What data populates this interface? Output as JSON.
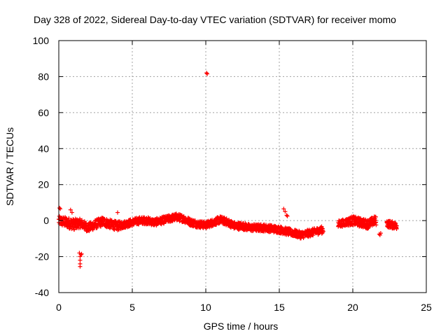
{
  "chart_data": {
    "type": "scatter",
    "title": "Day 328 of 2022, Sidereal Day-to-day VTEC variation (SDTVAR) for receiver momo",
    "xlabel": "GPS time / hours",
    "ylabel": "SDTVAR / TECUs",
    "xlim": [
      0,
      25
    ],
    "ylim": [
      -40,
      100
    ],
    "x_ticks": [
      0,
      5,
      10,
      15,
      20,
      25
    ],
    "x_tick_labels": [
      "0",
      "5",
      "10",
      "15",
      "20",
      "25"
    ],
    "y_ticks": [
      -40,
      -20,
      0,
      20,
      40,
      60,
      80,
      100
    ],
    "y_tick_labels": [
      "-40",
      "-20",
      "0",
      "20",
      "40",
      "60",
      "80",
      "100"
    ],
    "grid": true,
    "marker": "plus",
    "colors": {
      "points": "#ff0000",
      "grid": "#a0a0a0",
      "axes": "#000000"
    },
    "series": [
      {
        "name": "SDTVAR",
        "trend": {
          "x": [
            0.0,
            0.5,
            1.0,
            1.5,
            2.0,
            2.5,
            3.0,
            3.5,
            4.0,
            4.5,
            5.0,
            5.5,
            6.0,
            6.5,
            7.0,
            7.5,
            8.0,
            8.5,
            9.0,
            9.5,
            10.0,
            10.5,
            11.0,
            11.5,
            12.0,
            12.5,
            13.0,
            13.5,
            14.0,
            14.5,
            15.0,
            15.5,
            16.0,
            16.5,
            17.0,
            17.5,
            18.0,
            19.0,
            19.5,
            20.0,
            20.5,
            21.0,
            21.5,
            22.0,
            22.5,
            23.0
          ],
          "y": [
            0,
            -1,
            -2,
            -1.5,
            -4,
            -2,
            -0.5,
            -2,
            -3,
            -2,
            -1,
            0,
            0,
            -1,
            0,
            1,
            2,
            1,
            -1,
            -2,
            -2.5,
            -1,
            0.5,
            -1,
            -3,
            -3,
            -4,
            -4,
            -4,
            -4.5,
            -5,
            -6,
            -7,
            -8,
            -7,
            -6,
            -5,
            -2,
            -1,
            0,
            -1,
            -2,
            0,
            -1,
            -2,
            -3
          ],
          "spread": [
            2.5,
            3,
            3,
            2.5,
            2.5,
            2.5,
            2.5,
            2.5,
            2.5,
            2,
            2,
            2,
            2,
            2,
            2,
            2,
            2,
            2,
            2,
            2,
            2,
            2,
            2,
            2,
            2,
            2,
            2,
            2,
            2,
            2,
            2,
            2,
            2,
            2,
            2,
            2,
            2,
            2,
            2,
            2.5,
            2.5,
            2.5,
            2.5,
            2,
            2,
            2
          ],
          "gaps": [
            [
              18.0,
              19.0
            ],
            [
              21.6,
              22.3
            ]
          ],
          "step_hours": 0.012
        },
        "outliers": [
          {
            "x": 0.05,
            "y": 7
          },
          {
            "x": 0.1,
            "y": 6.5
          },
          {
            "x": 0.8,
            "y": 6
          },
          {
            "x": 0.9,
            "y": 4.5
          },
          {
            "x": 1.05,
            "y": -5
          },
          {
            "x": 1.4,
            "y": -18
          },
          {
            "x": 1.45,
            "y": -20
          },
          {
            "x": 1.45,
            "y": -22
          },
          {
            "x": 1.45,
            "y": -24
          },
          {
            "x": 1.45,
            "y": -25.5
          },
          {
            "x": 1.5,
            "y": -19
          },
          {
            "x": 1.55,
            "y": -18.5
          },
          {
            "x": 4.0,
            "y": 4.5
          },
          {
            "x": 10.05,
            "y": 82
          },
          {
            "x": 10.1,
            "y": 81.5
          },
          {
            "x": 15.3,
            "y": 6.5
          },
          {
            "x": 15.4,
            "y": 5
          },
          {
            "x": 15.5,
            "y": 3
          },
          {
            "x": 15.55,
            "y": 2.5
          },
          {
            "x": 21.8,
            "y": -7.5
          },
          {
            "x": 21.9,
            "y": -7
          },
          {
            "x": 21.85,
            "y": -8
          }
        ]
      }
    ]
  }
}
